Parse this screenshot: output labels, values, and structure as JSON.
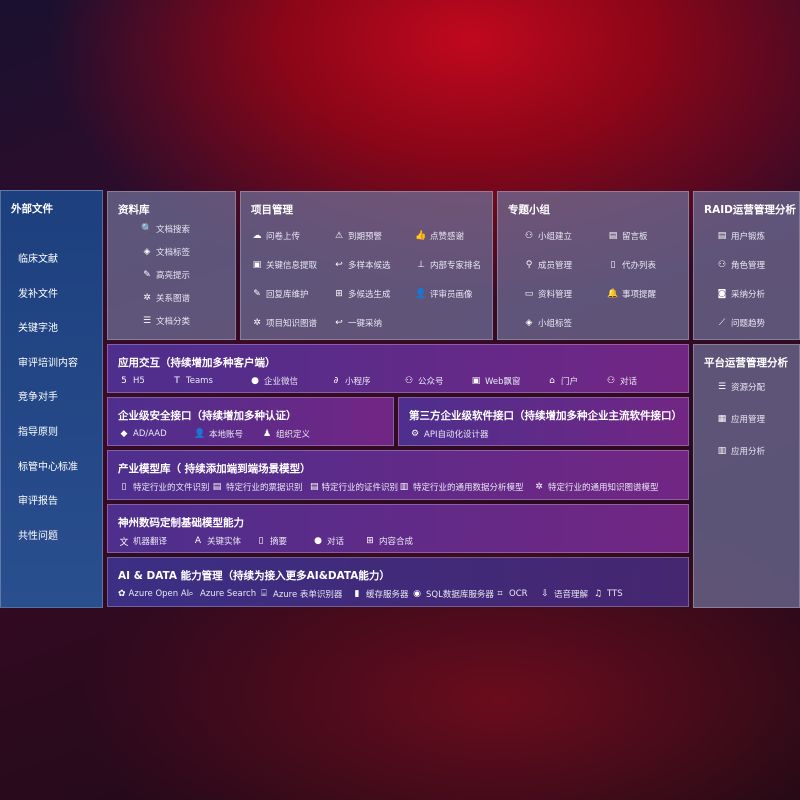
{
  "left": {
    "title": "外部文件",
    "items": [
      "临床文献",
      "发补文件",
      "关键字池",
      "审评培训内容",
      "竞争对手",
      "指导原则",
      "标管中心标准",
      "审评报告",
      "共性问题"
    ]
  },
  "library": {
    "title": "资料库",
    "items": [
      {
        "label": "文档搜索",
        "icon": "doc-search-icon"
      },
      {
        "label": "文档标签",
        "icon": "tag-icon"
      },
      {
        "label": "高亮提示",
        "icon": "pen-icon"
      },
      {
        "label": "关系图谱",
        "icon": "graph-icon"
      },
      {
        "label": "文档分类",
        "icon": "doc-list-icon"
      }
    ]
  },
  "project": {
    "title": "项目管理",
    "items": [
      {
        "label": "问卷上传",
        "icon": "cloud-upload-icon"
      },
      {
        "label": "到期预警",
        "icon": "alarm-icon"
      },
      {
        "label": "点赞感谢",
        "icon": "thumbs-up-icon"
      },
      {
        "label": "关键信息提取",
        "icon": "window-icon"
      },
      {
        "label": "多样本候选",
        "icon": "reply-icon"
      },
      {
        "label": "内部专家排名",
        "icon": "rank-icon"
      },
      {
        "label": "回复库维护",
        "icon": "edit-icon"
      },
      {
        "label": "多候选生成",
        "icon": "puzzle-icon"
      },
      {
        "label": "评审员画像",
        "icon": "user-icon"
      },
      {
        "label": "项目知识图谱",
        "icon": "graph-icon"
      },
      {
        "label": "一键采纳",
        "icon": "reply-icon"
      }
    ]
  },
  "group": {
    "title": "专题小组",
    "items": [
      {
        "label": "小组建立",
        "icon": "users-icon"
      },
      {
        "label": "留言板",
        "icon": "bbs-icon"
      },
      {
        "label": "成员管理",
        "icon": "user-add-icon"
      },
      {
        "label": "代办列表",
        "icon": "clipboard-icon"
      },
      {
        "label": "资料管理",
        "icon": "folder-icon"
      },
      {
        "label": "事项提醒",
        "icon": "bell-icon"
      },
      {
        "label": "小组标签",
        "icon": "tag-icon"
      }
    ]
  },
  "raid": {
    "title": "RAID运营管理分析",
    "items": [
      {
        "label": "用户锻炼",
        "icon": "id-card-icon"
      },
      {
        "label": "角色管理",
        "icon": "users-icon"
      },
      {
        "label": "采纳分析",
        "icon": "qa-icon"
      },
      {
        "label": "问题趋势",
        "icon": "trend-icon"
      }
    ]
  },
  "platform": {
    "title": "平台运营管理分析",
    "items": [
      {
        "label": "资源分配",
        "icon": "list-icon"
      },
      {
        "label": "应用管理",
        "icon": "apps-icon"
      },
      {
        "label": "应用分析",
        "icon": "chart-icon"
      }
    ]
  },
  "app": {
    "title": "应用交互（持续增加多种客户端）",
    "items": [
      {
        "label": "H5",
        "icon": "html5-icon"
      },
      {
        "label": "Teams",
        "icon": "teams-icon"
      },
      {
        "label": "企业微信",
        "icon": "wecom-icon"
      },
      {
        "label": "小程序",
        "icon": "miniprogram-icon"
      },
      {
        "label": "公众号",
        "icon": "users-icon"
      },
      {
        "label": "Web飘窗",
        "icon": "window-icon"
      },
      {
        "label": "门户",
        "icon": "portal-icon"
      },
      {
        "label": "对话",
        "icon": "chat-users-icon"
      }
    ]
  },
  "security": {
    "title": "企业级安全接口（持续增加多种认证）",
    "items": [
      {
        "label": "AD/AAD",
        "icon": "diamond-icon"
      },
      {
        "label": "本地账号",
        "icon": "user-icon"
      },
      {
        "label": "组织定义",
        "icon": "org-icon"
      }
    ]
  },
  "third": {
    "title": "第三方企业级软件接口（持续增加多种企业主流软件接口）",
    "items": [
      {
        "label": "API自动化设计器",
        "icon": "gear-icon"
      }
    ]
  },
  "industry": {
    "title": "产业模型库（ 持续添加端到端场景模型）",
    "items": [
      {
        "label": "特定行业的文件识别",
        "icon": "file-icon"
      },
      {
        "label": "特定行业的票据识别",
        "icon": "receipt-icon"
      },
      {
        "label": "特定行业的证件识别",
        "icon": "id-card-icon"
      },
      {
        "label": "特定行业的通用数据分析模型",
        "icon": "chart-icon"
      },
      {
        "label": "特定行业的通用知识图谱模型",
        "icon": "graph-icon"
      }
    ]
  },
  "base": {
    "title": "神州数码定制基础模型能力",
    "items": [
      {
        "label": "机器翻译",
        "icon": "translate-icon"
      },
      {
        "label": "关键实体",
        "icon": "entity-icon"
      },
      {
        "label": "摘要",
        "icon": "doc-icon"
      },
      {
        "label": "对话",
        "icon": "chat-icon"
      },
      {
        "label": "内容合成",
        "icon": "puzzle-icon"
      }
    ]
  },
  "ai": {
    "title": "AI & DATA 能力管理（持续为接入更多AI&DATA能力）",
    "items": [
      {
        "label": "Azure Open AI",
        "icon": "openai-icon"
      },
      {
        "label": "Azure Search",
        "icon": "search-icon"
      },
      {
        "label": "Azure 表单识别器",
        "icon": "form-icon"
      },
      {
        "label": "缓存服务器",
        "icon": "server-icon"
      },
      {
        "label": "SQL数据库服务器",
        "icon": "database-icon"
      },
      {
        "label": "OCR",
        "icon": "ocr-icon"
      },
      {
        "label": "语音理解",
        "icon": "speech-icon"
      },
      {
        "label": "TTS",
        "icon": "tts-icon"
      }
    ]
  }
}
